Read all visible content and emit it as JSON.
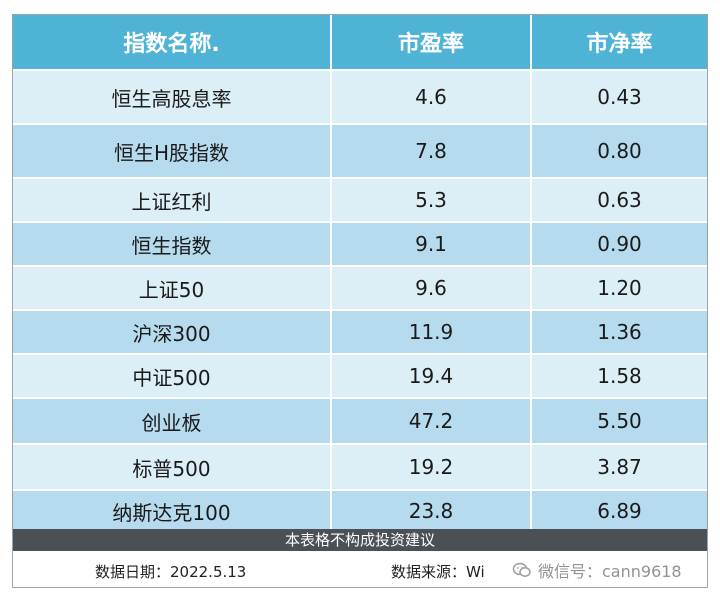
{
  "table": {
    "headers": [
      "指数名称.",
      "市盈率",
      "市净率"
    ],
    "rows": [
      {
        "name": "恒生高股息率",
        "pe": "4.6",
        "pb": "0.43"
      },
      {
        "name": "恒生H股指数",
        "pe": "7.8",
        "pb": "0.80"
      },
      {
        "name": "上证红利",
        "pe": "5.3",
        "pb": "0.63"
      },
      {
        "name": "恒生指数",
        "pe": "9.1",
        "pb": "0.90"
      },
      {
        "name": "上证50",
        "pe": "9.6",
        "pb": "1.20"
      },
      {
        "name": "沪深300",
        "pe": "11.9",
        "pb": "1.36"
      },
      {
        "name": "中证500",
        "pe": "19.4",
        "pb": "1.58"
      },
      {
        "name": "创业板",
        "pe": "47.2",
        "pb": "5.50"
      },
      {
        "name": "标普500",
        "pe": "19.2",
        "pb": "3.87"
      },
      {
        "name": "纳斯达克100",
        "pe": "23.8",
        "pb": "6.89"
      }
    ]
  },
  "disclaimer": "本表格不构成投资建议",
  "footer": {
    "date": "数据日期：2022.5.13",
    "source": "数据来源：Wi"
  },
  "watermark": {
    "icon": "wechat-icon",
    "text": "微信号：cann9618"
  },
  "colors": {
    "header": "#4fb3d6",
    "row_light": "#dceef6",
    "row_dark": "#b7dbee",
    "disclaimer_bar": "#4a5056"
  }
}
